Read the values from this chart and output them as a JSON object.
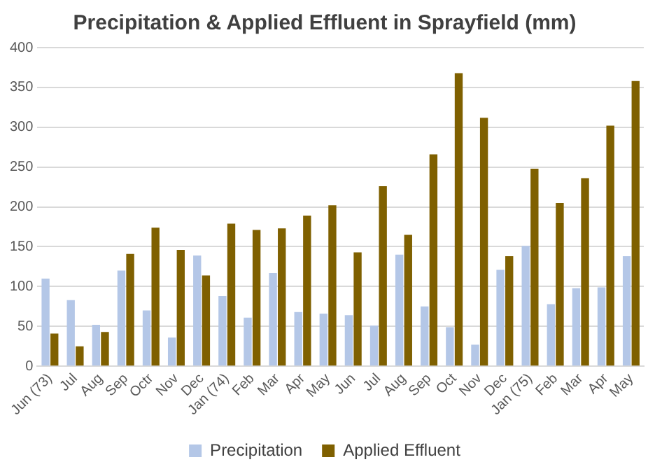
{
  "chart_data": {
    "type": "bar",
    "title": "Precipitation & Applied Effluent in Sprayfield (mm)",
    "categories": [
      "Jun (73)",
      "Jul",
      "Aug",
      "Sep",
      "Octr",
      "Nov",
      "Dec",
      "Jan (74)",
      "Feb",
      "Mar",
      "Apr",
      "May",
      "Jun",
      "Jul",
      "Aug",
      "Sep",
      "Oct",
      "Nov",
      "Dec",
      "Jan (75)",
      "Feb",
      "Mar",
      "Apr",
      "May"
    ],
    "series": [
      {
        "name": "Precipitation",
        "color": "#b4c7e7",
        "values": [
          110,
          83,
          52,
          120,
          70,
          36,
          139,
          88,
          61,
          117,
          68,
          66,
          64,
          51,
          140,
          75,
          49,
          27,
          121,
          151,
          78,
          98,
          99,
          138
        ]
      },
      {
        "name": "Applied Effluent",
        "color": "#7f6000",
        "values": [
          41,
          25,
          43,
          141,
          174,
          146,
          114,
          179,
          171,
          173,
          189,
          202,
          143,
          226,
          165,
          266,
          368,
          312,
          138,
          248,
          205,
          236,
          302,
          358
        ]
      }
    ],
    "ylim": [
      0,
      400
    ],
    "yticks": [
      0,
      50,
      100,
      150,
      200,
      250,
      300,
      350,
      400
    ],
    "grid": "y",
    "legend": "bottom"
  }
}
